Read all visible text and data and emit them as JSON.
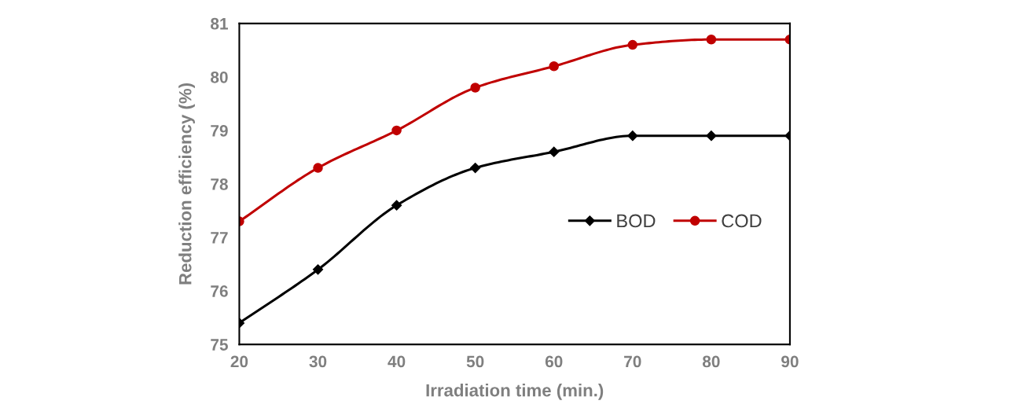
{
  "chart_data": {
    "type": "line",
    "xlabel": "Irradiation time (min.)",
    "ylabel": "Reduction efficiency (%)",
    "x": [
      20,
      30,
      40,
      50,
      60,
      70,
      80,
      90
    ],
    "series": [
      {
        "name": "BOD",
        "color": "#000000",
        "marker": "diamond",
        "values": [
          75.4,
          76.4,
          77.6,
          78.3,
          78.6,
          78.9,
          78.9,
          78.9
        ]
      },
      {
        "name": "COD",
        "color": "#c00000",
        "marker": "circle",
        "values": [
          77.3,
          78.3,
          79.0,
          79.8,
          80.2,
          80.6,
          80.7,
          80.7
        ]
      }
    ],
    "xlim": [
      20,
      90
    ],
    "xticks": [
      20,
      30,
      40,
      50,
      60,
      70,
      80,
      90
    ],
    "ylim": [
      75,
      81
    ],
    "yticks": [
      75,
      76,
      77,
      78,
      79,
      80,
      81
    ],
    "grid": false,
    "legend": "right",
    "line_style": "solid"
  }
}
